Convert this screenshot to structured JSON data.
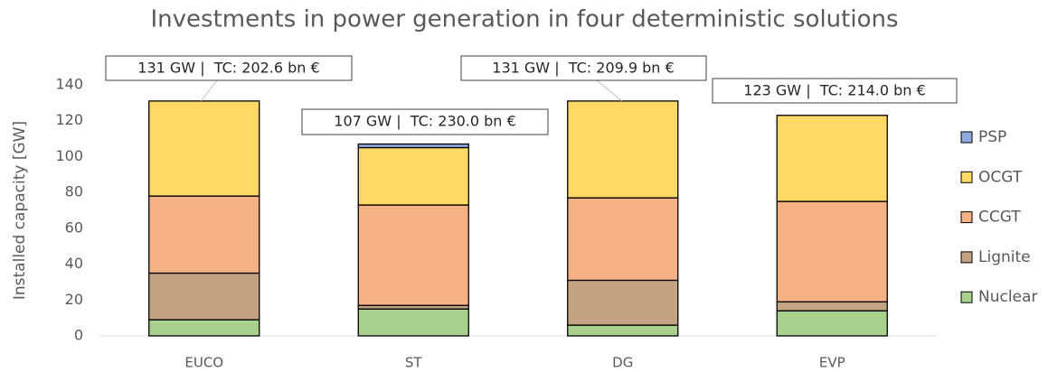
{
  "chart_data": {
    "type": "stacked_bar",
    "title": "Investments in power generation in four deterministic solutions",
    "y_label": "Installed capacity [GW]",
    "categories": [
      "EUCO",
      "ST",
      "DG",
      "EVP"
    ],
    "series": [
      {
        "name": "Nuclear",
        "color": "#a9d18e",
        "values": [
          9,
          15,
          6,
          14
        ]
      },
      {
        "name": "Lignite",
        "color": "#c4a383",
        "values": [
          26,
          2,
          25,
          5
        ]
      },
      {
        "name": "CCGT",
        "color": "#f4b183",
        "values": [
          43,
          56,
          46,
          56
        ]
      },
      {
        "name": "OCGT",
        "color": "#ffd966",
        "values": [
          53,
          32,
          54,
          48
        ]
      },
      {
        "name": "PSP",
        "color": "#8faadc",
        "values": [
          0,
          2,
          0,
          0
        ]
      }
    ],
    "annotations": [
      "131 GW |  TC: 202.6 bn €",
      "107 GW |  TC: 230.0 bn €",
      "131 GW |  TC: 209.9 bn €",
      "123 GW |  TC: 214.0 bn €"
    ],
    "ylim": [
      0,
      140
    ],
    "yticks": [
      0,
      20,
      40,
      60,
      80,
      100,
      120,
      140
    ],
    "grid": false,
    "legend": "right"
  }
}
